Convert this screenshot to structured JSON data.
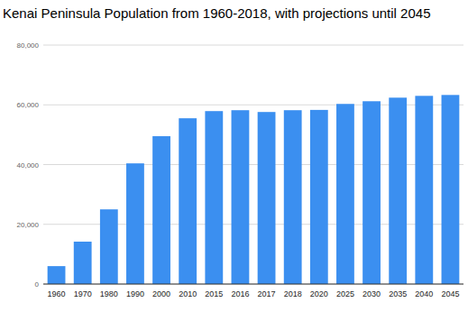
{
  "chart_data": {
    "type": "bar",
    "title": "Kenai Peninsula Population from 1960-2018, with projections until 2045",
    "categories": [
      "1960",
      "1970",
      "1980",
      "1990",
      "2000",
      "2010",
      "2015",
      "2016",
      "2017",
      "2018",
      "2020",
      "2025",
      "2030",
      "2035",
      "2040",
      "2045"
    ],
    "values": [
      6000,
      14200,
      25000,
      40400,
      49500,
      55500,
      57900,
      58200,
      57600,
      58200,
      58300,
      60300,
      61200,
      62400,
      63000,
      63300
    ],
    "color": "#3b8ff0",
    "ylim": [
      0,
      80000
    ],
    "yticks": [
      0,
      {
        "value": 20000,
        "label": "20,000"
      },
      {
        "value": 40000,
        "label": "40,000"
      },
      {
        "value": 60000,
        "label": "60,000"
      },
      {
        "value": 80000,
        "label": "80,000"
      }
    ],
    "grid": true
  }
}
